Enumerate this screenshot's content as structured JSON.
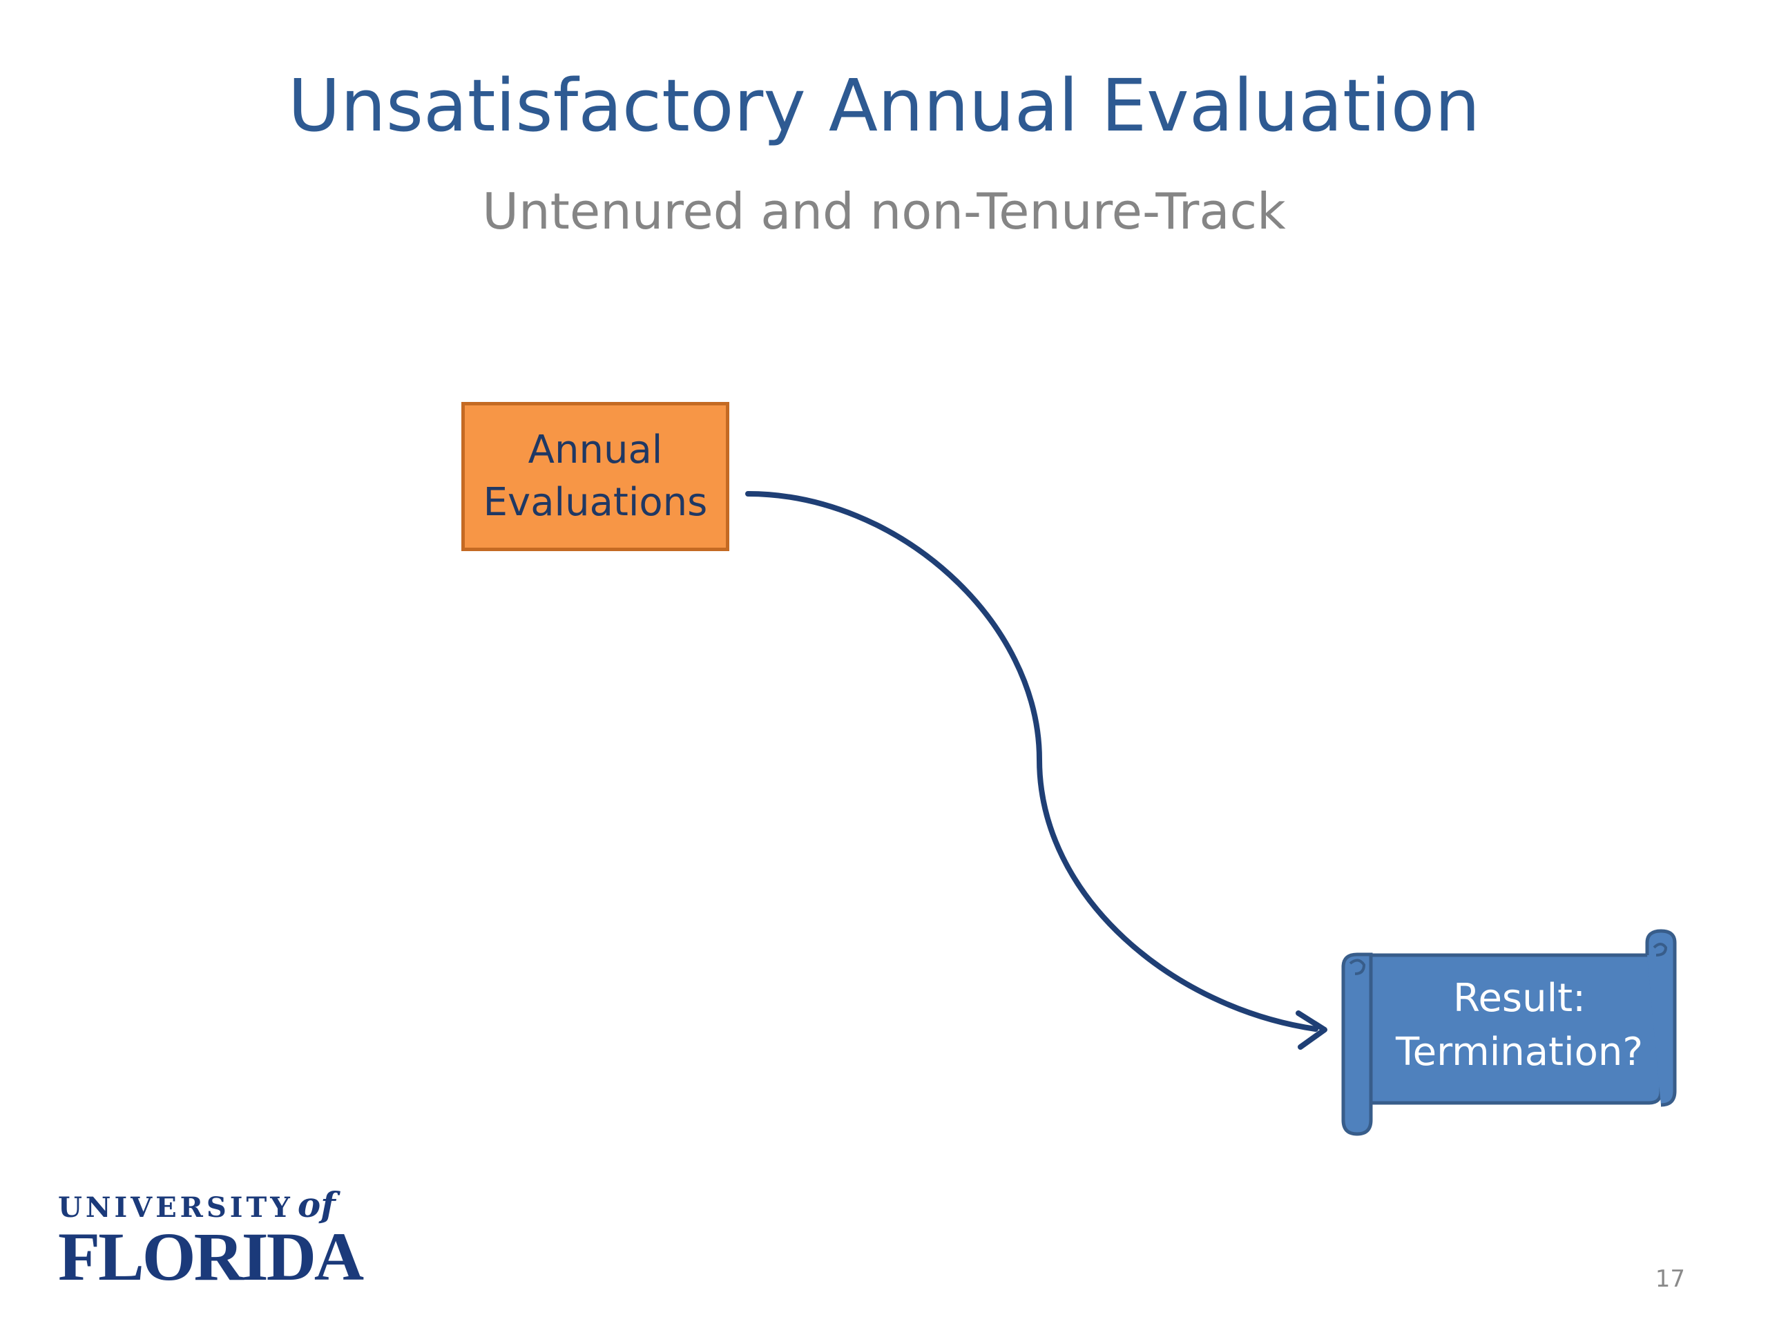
{
  "slide": {
    "title": "Unsatisfactory Annual Evaluation",
    "subtitle": "Untenured and non-Tenure-Track",
    "page_number": "17"
  },
  "diagram": {
    "nodes": [
      {
        "id": "annual",
        "label": "Annual\nEvaluations",
        "shape": "rectangle",
        "fill": "#f79646",
        "border": "#c46a23",
        "text_color": "#1f3864"
      },
      {
        "id": "result",
        "label": "Result:\nTermination?",
        "shape": "horizontal-scroll",
        "fill": "#4f81bd",
        "border": "#385d8a",
        "text_color": "#ffffff"
      }
    ],
    "edges": [
      {
        "from": "annual",
        "to": "result",
        "style": "curved-arrow",
        "color": "#1f3f75"
      }
    ]
  },
  "logo": {
    "line1": "UNIVERSITY",
    "line1_of": "of",
    "line2": "FLORIDA",
    "color": "#1b3a7a"
  }
}
